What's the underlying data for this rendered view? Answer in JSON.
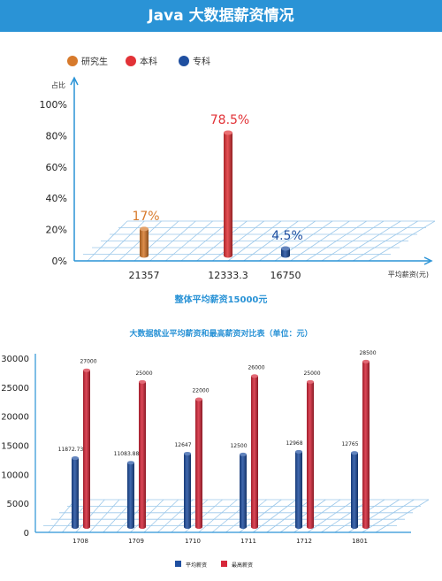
{
  "page": {
    "title": "Java 大数据薪资情况"
  },
  "chart_data": [
    {
      "type": "bar",
      "title": "",
      "subtitle": "整体平均薪资15000元",
      "ylabel": "占比",
      "xlabel": "平均薪资(元)",
      "y_ticks": [
        "100%",
        "80%",
        "60%",
        "40%",
        "20%",
        "0%"
      ],
      "ylim": [
        0,
        100
      ],
      "categories": [
        "21357",
        "12333.3",
        "16750"
      ],
      "values": [
        17,
        78.5,
        4.5
      ],
      "value_labels": [
        "17%",
        "78.5%",
        "4.5%"
      ],
      "legend": [
        "研究生",
        "本科",
        "专科"
      ],
      "colors": [
        "#d77a2c",
        "#e23237",
        "#1f4fa0"
      ],
      "legend_position": "top"
    },
    {
      "type": "bar",
      "title": "大数据就业平均薪资和最高薪资对比表（单位：元）",
      "categories": [
        "1708",
        "1709",
        "1710",
        "1711",
        "1712",
        "1801"
      ],
      "ylim": [
        0,
        30000
      ],
      "y_ticks": [
        "30000",
        "25000",
        "20000",
        "15000",
        "10000",
        "5000",
        "0"
      ],
      "series": [
        {
          "name": "平均薪资",
          "color": "#1f4fa0",
          "values": [
            11872.73,
            11083.88,
            12647,
            12500,
            12968,
            12765
          ],
          "labels": [
            "11872.73",
            "11083.88",
            "12647",
            "12500",
            "12968",
            "12765"
          ]
        },
        {
          "name": "最高薪资",
          "color": "#d6283a",
          "values": [
            27000,
            25000,
            22000,
            26000,
            25000,
            28500
          ],
          "labels": [
            "27000",
            "25000",
            "22000",
            "26000",
            "25000",
            "28500"
          ]
        }
      ],
      "legend_position": "bottom"
    }
  ]
}
